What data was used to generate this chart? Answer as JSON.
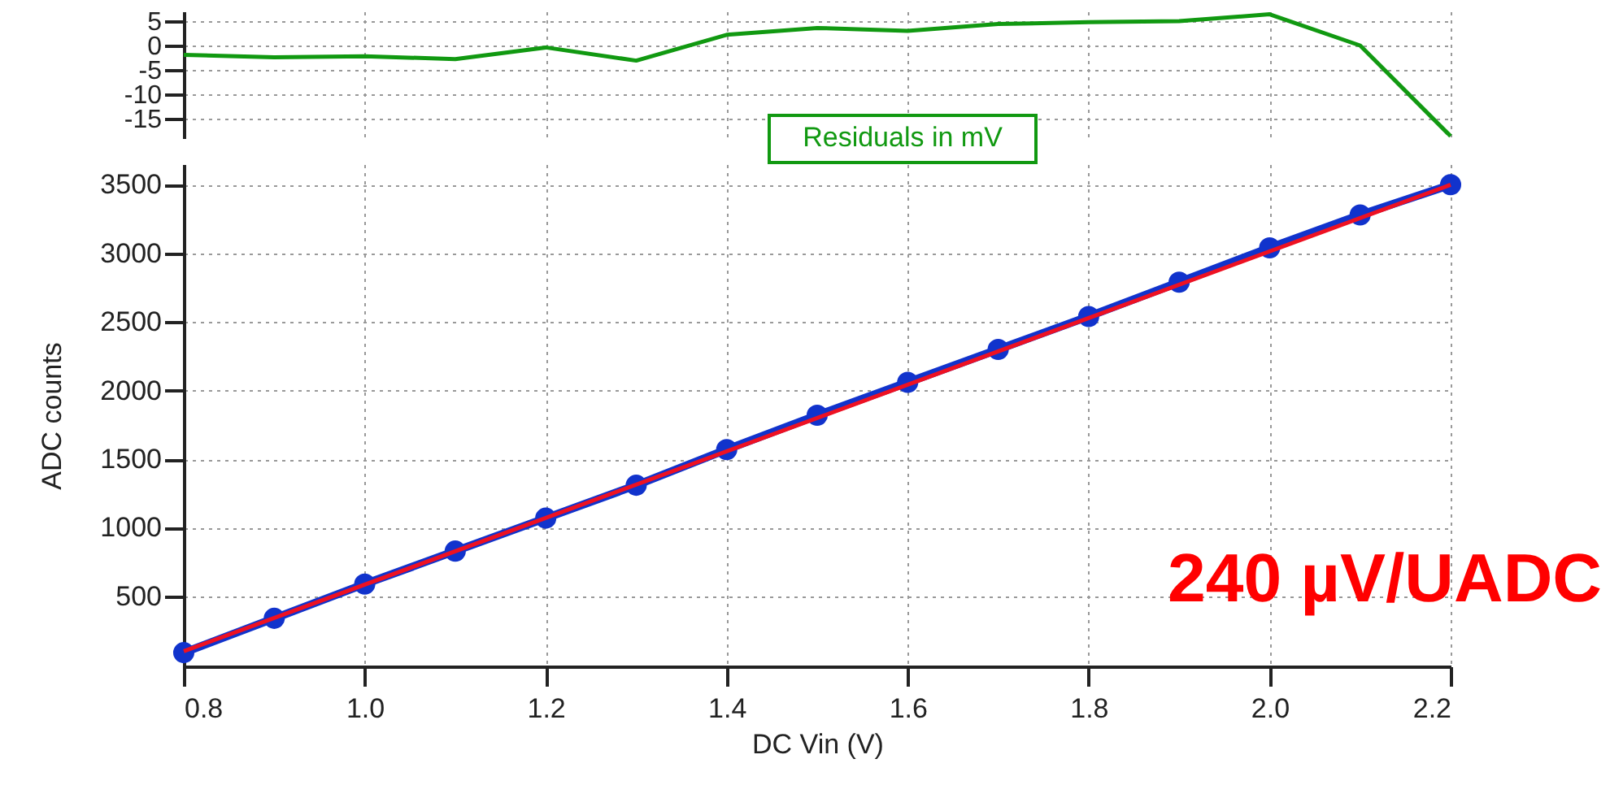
{
  "chart_data": [
    {
      "type": "line",
      "x": [
        0.8,
        0.9,
        1.0,
        1.1,
        1.2,
        1.3,
        1.4,
        1.5,
        1.6,
        1.7,
        1.8,
        1.9,
        2.0,
        2.1,
        2.2
      ],
      "series": [
        {
          "color": "#119911",
          "values": [
            -1.9,
            -2.4,
            -2.2,
            -2.8,
            -0.4,
            -3.1,
            2.2,
            3.6,
            3.0,
            4.4,
            4.8,
            5.0,
            6.4,
            0,
            -18.6
          ]
        }
      ],
      "xlim": [
        0.8,
        2.2
      ],
      "xticks": [
        0.8,
        1,
        1.2,
        1.4,
        1.6,
        1.8,
        2,
        2.2
      ],
      "ylim": [
        -19,
        7
      ],
      "yticks": [
        5,
        0,
        -5,
        -10,
        -15
      ],
      "grid": true,
      "tick_labels": "y",
      "annotations": [
        "Residuals in mV"
      ]
    },
    {
      "type": "line",
      "xlabel": "DC Vin (V)",
      "ylabel": "ADC counts",
      "series": [
        {
          "color": "#1133cc",
          "marker": "circle",
          "x": [
            0.8,
            0.9,
            1.0,
            1.1,
            1.2,
            1.3,
            1.4,
            1.5,
            1.6,
            1.7,
            1.8,
            1.9,
            2.0,
            2.1,
            2.2
          ],
          "values": [
            90,
            340,
            590,
            830,
            1070,
            1310,
            1570,
            1820,
            2060,
            2300,
            2540,
            2790,
            3040,
            3280,
            3500
          ]
        },
        {
          "color": "#ee1122",
          "x": [
            0.8,
            2.2
          ],
          "values": [
            100,
            3500
          ]
        }
      ],
      "xlim": [
        0.8,
        2.2
      ],
      "xticks": [
        0.8,
        {
          "value": 1,
          "label": "1.0"
        },
        1.2,
        1.4,
        1.6,
        1.8,
        {
          "value": 2,
          "label": "2.0"
        },
        2.2
      ],
      "ylim": [
        -10,
        3650
      ],
      "yticks": [
        500,
        1000,
        1500,
        2000,
        2500,
        3000,
        3500
      ],
      "grid": true,
      "annotations": [
        "240 µV/UADC"
      ]
    }
  ]
}
